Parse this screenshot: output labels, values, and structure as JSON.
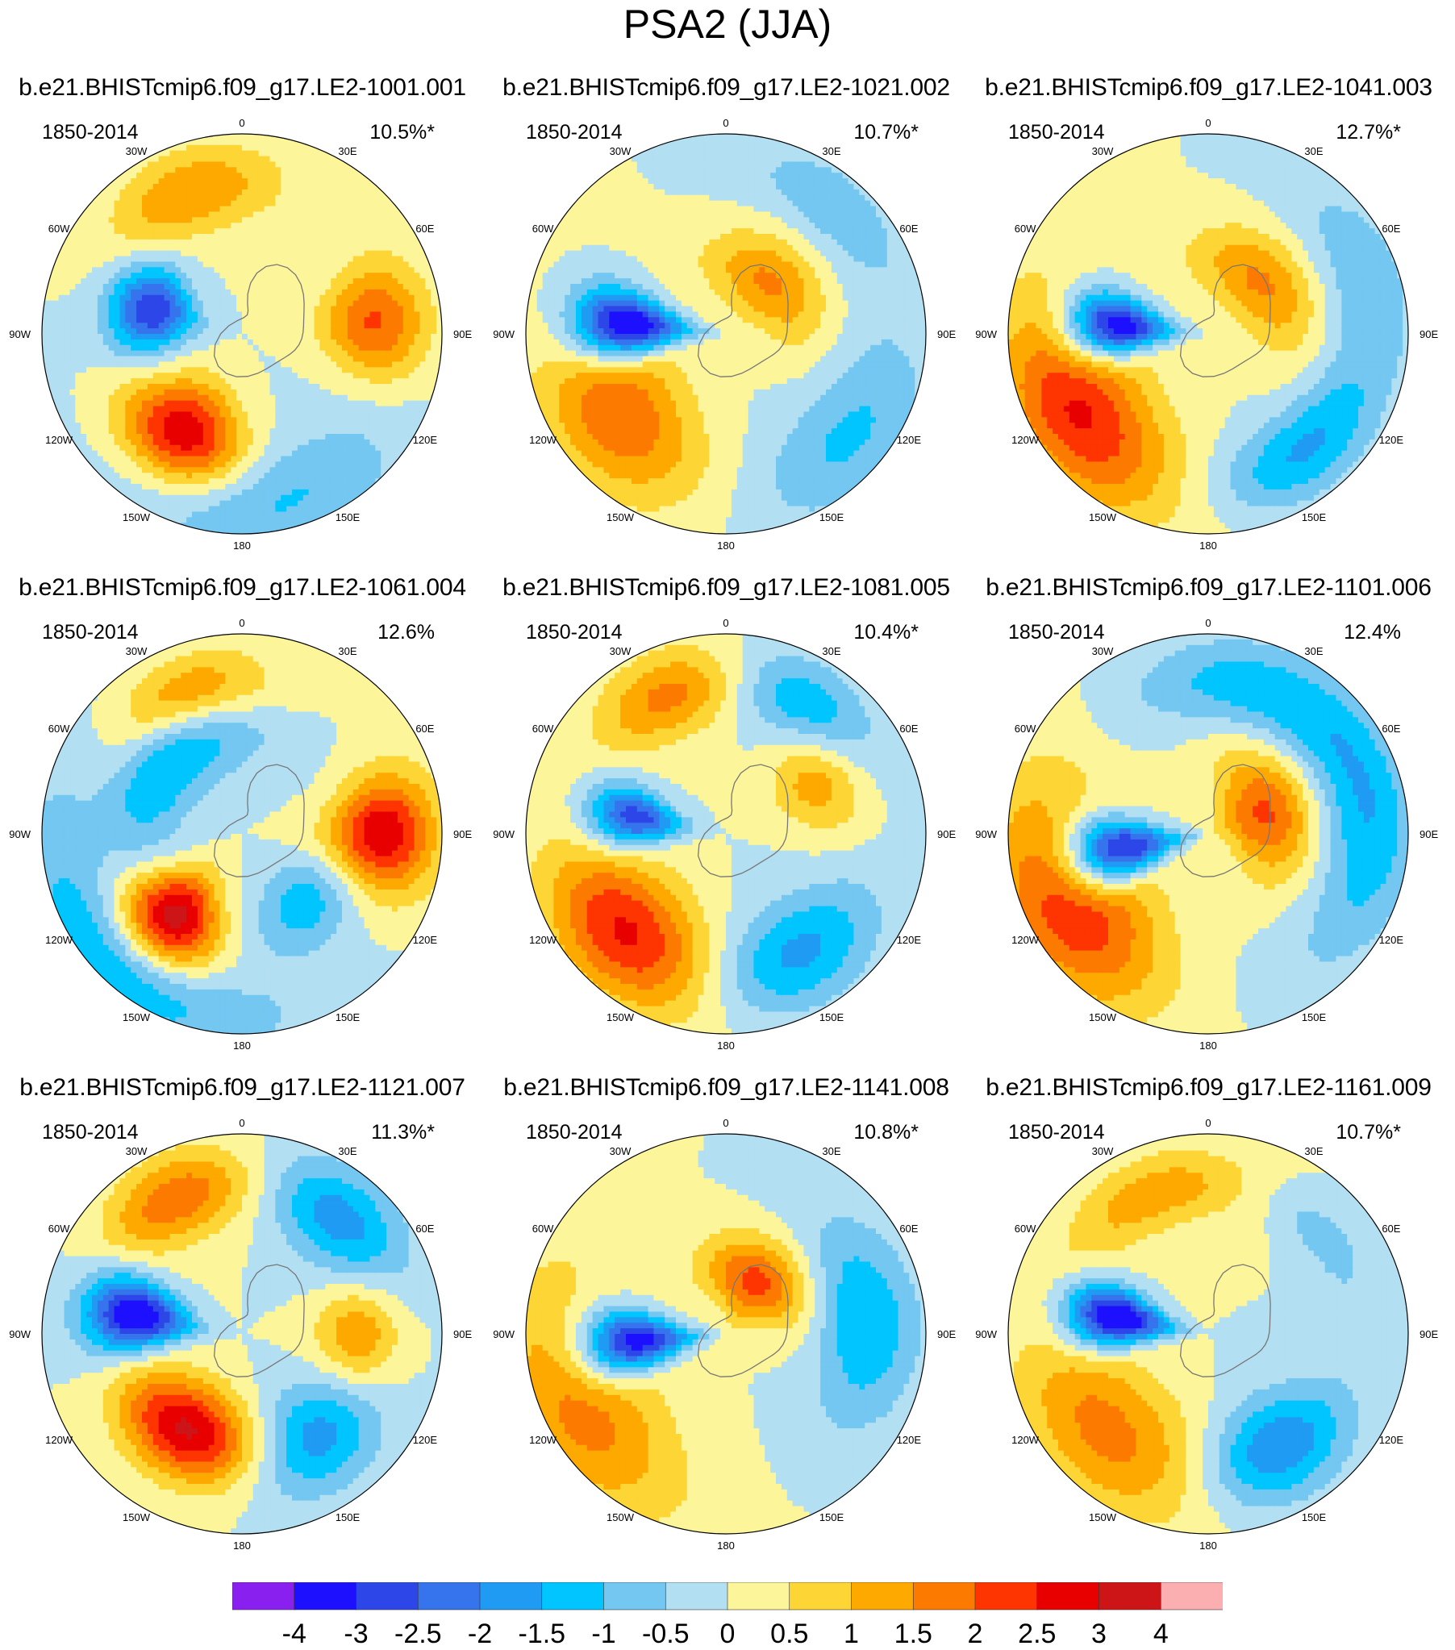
{
  "title": "PSA2 (JJA)",
  "panels": [
    {
      "name": "b.e21.BHISTcmip6.f09_g17.LE2-1001.001",
      "period": "1850-2014",
      "variance": "10.5%*",
      "blobs": [
        {
          "lon": -150,
          "lat": -55,
          "amp": 3.2,
          "w": 22,
          "h": 11
        },
        {
          "lon": -75,
          "lat": -62,
          "amp": -3.0,
          "w": 18,
          "h": 9
        },
        {
          "lon": 85,
          "lat": -50,
          "amp": 2.1,
          "w": 17,
          "h": 11
        },
        {
          "lon": -20,
          "lat": -45,
          "amp": 1.5,
          "w": 24,
          "h": 9
        },
        {
          "lon": 175,
          "lat": -40,
          "amp": -1.2,
          "w": 36,
          "h": 12
        }
      ]
    },
    {
      "name": "b.e21.BHISTcmip6.f09_g17.LE2-1021.002",
      "period": "1850-2014",
      "variance": "10.7%*",
      "blobs": [
        {
          "lon": -85,
          "lat": -60,
          "amp": -4.2,
          "w": 13,
          "h": 12
        },
        {
          "lon": -125,
          "lat": -50,
          "amp": 2.0,
          "w": 30,
          "h": 14
        },
        {
          "lon": 40,
          "lat": -70,
          "amp": 1.6,
          "w": 40,
          "h": 9
        },
        {
          "lon": 130,
          "lat": -42,
          "amp": -1.1,
          "w": 28,
          "h": 12
        },
        {
          "lon": 40,
          "lat": -40,
          "amp": -0.9,
          "w": 22,
          "h": 8
        }
      ]
    },
    {
      "name": "b.e21.BHISTcmip6.f09_g17.LE2-1041.003",
      "period": "1850-2014",
      "variance": "12.7%*",
      "blobs": [
        {
          "lon": -85,
          "lat": -62,
          "amp": -4.0,
          "w": 13,
          "h": 11
        },
        {
          "lon": -120,
          "lat": -45,
          "amp": 2.6,
          "w": 32,
          "h": 14
        },
        {
          "lon": 45,
          "lat": -68,
          "amp": 1.6,
          "w": 40,
          "h": 9
        },
        {
          "lon": 140,
          "lat": -45,
          "amp": -1.6,
          "w": 26,
          "h": 9
        },
        {
          "lon": 70,
          "lat": -40,
          "amp": -0.9,
          "w": 25,
          "h": 9
        }
      ]
    },
    {
      "name": "b.e21.BHISTcmip6.f09_g17.LE2-1061.004",
      "period": "1850-2014",
      "variance": "12.6%",
      "blobs": [
        {
          "lon": -140,
          "lat": -58,
          "amp": 3.4,
          "w": 18,
          "h": 10
        },
        {
          "lon": 90,
          "lat": -48,
          "amp": 3.0,
          "w": 16,
          "h": 11
        },
        {
          "lon": -45,
          "lat": -60,
          "amp": -1.6,
          "w": 40,
          "h": 9
        },
        {
          "lon": -135,
          "lat": -35,
          "amp": -1.4,
          "w": 40,
          "h": 10
        },
        {
          "lon": 140,
          "lat": -62,
          "amp": -1.3,
          "w": 22,
          "h": 9
        },
        {
          "lon": -20,
          "lat": -45,
          "amp": 1.5,
          "w": 22,
          "h": 8
        }
      ]
    },
    {
      "name": "b.e21.BHISTcmip6.f09_g17.LE2-1081.005",
      "period": "1850-2014",
      "variance": "10.4%*",
      "blobs": [
        {
          "lon": -80,
          "lat": -62,
          "amp": -3.0,
          "w": 12,
          "h": 10
        },
        {
          "lon": -135,
          "lat": -48,
          "amp": 2.6,
          "w": 28,
          "h": 13
        },
        {
          "lon": 60,
          "lat": -58,
          "amp": 1.4,
          "w": 20,
          "h": 10
        },
        {
          "lon": 150,
          "lat": -48,
          "amp": -1.7,
          "w": 26,
          "h": 11
        },
        {
          "lon": 30,
          "lat": -45,
          "amp": -1.6,
          "w": 24,
          "h": 9
        },
        {
          "lon": -20,
          "lat": -45,
          "amp": 1.8,
          "w": 22,
          "h": 9
        }
      ]
    },
    {
      "name": "b.e21.BHISTcmip6.f09_g17.LE2-1101.006",
      "period": "1850-2014",
      "variance": "12.4%",
      "blobs": [
        {
          "lon": -100,
          "lat": -62,
          "amp": -4.1,
          "w": 14,
          "h": 12
        },
        {
          "lon": -115,
          "lat": -45,
          "amp": 2.7,
          "w": 30,
          "h": 15
        },
        {
          "lon": 70,
          "lat": -72,
          "amp": 2.1,
          "w": 40,
          "h": 10
        },
        {
          "lon": 80,
          "lat": -42,
          "amp": -1.5,
          "w": 40,
          "h": 10
        },
        {
          "lon": 10,
          "lat": -45,
          "amp": -1.0,
          "w": 30,
          "h": 9
        }
      ]
    },
    {
      "name": "b.e21.BHISTcmip6.f09_g17.LE2-1121.007",
      "period": "1850-2014",
      "variance": "11.3%*",
      "blobs": [
        {
          "lon": -80,
          "lat": -58,
          "amp": -3.8,
          "w": 13,
          "h": 11
        },
        {
          "lon": -150,
          "lat": -57,
          "amp": 3.1,
          "w": 26,
          "h": 10
        },
        {
          "lon": -25,
          "lat": -45,
          "amp": 1.9,
          "w": 22,
          "h": 9
        },
        {
          "lon": 40,
          "lat": -45,
          "amp": -1.8,
          "w": 22,
          "h": 10
        },
        {
          "lon": 145,
          "lat": -52,
          "amp": -1.8,
          "w": 22,
          "h": 11
        },
        {
          "lon": 90,
          "lat": -55,
          "amp": 1.5,
          "w": 18,
          "h": 9
        }
      ]
    },
    {
      "name": "b.e21.BHISTcmip6.f09_g17.LE2-1141.008",
      "period": "1850-2014",
      "variance": "10.8%*",
      "blobs": [
        {
          "lon": -95,
          "lat": -62,
          "amp": -3.8,
          "w": 13,
          "h": 12
        },
        {
          "lon": -115,
          "lat": -42,
          "amp": 1.8,
          "w": 32,
          "h": 15
        },
        {
          "lon": 30,
          "lat": -72,
          "amp": 2.2,
          "w": 35,
          "h": 9
        },
        {
          "lon": 85,
          "lat": -48,
          "amp": -1.5,
          "w": 30,
          "h": 11
        }
      ]
    },
    {
      "name": "b.e21.BHISTcmip6.f09_g17.LE2-1161.009",
      "period": "1850-2014",
      "variance": "10.7%*",
      "blobs": [
        {
          "lon": -80,
          "lat": -62,
          "amp": -4.1,
          "w": 12,
          "h": 11
        },
        {
          "lon": -135,
          "lat": -48,
          "amp": 1.7,
          "w": 36,
          "h": 14
        },
        {
          "lon": 150,
          "lat": -50,
          "amp": -2.1,
          "w": 24,
          "h": 11
        },
        {
          "lon": -20,
          "lat": -45,
          "amp": 1.3,
          "w": 28,
          "h": 8
        },
        {
          "lon": 50,
          "lat": -45,
          "amp": -0.8,
          "w": 20,
          "h": 6
        }
      ]
    }
  ],
  "map_labels": [
    "0",
    "30E",
    "60E",
    "90E",
    "120E",
    "150E",
    "180",
    "150W",
    "120W",
    "90W",
    "60W",
    "30W"
  ],
  "colorbar": {
    "levels": [
      "-4",
      "-3",
      "-2.5",
      "-2",
      "-1.5",
      "-1",
      "-0.5",
      "0",
      "0.5",
      "1",
      "1.5",
      "2",
      "2.5",
      "3",
      "4"
    ],
    "colors": [
      "#8a20f0",
      "#1c10ff",
      "#2c46e8",
      "#3574ec",
      "#1f9bf4",
      "#00c5ff",
      "#73c7f1",
      "#b3dff2",
      "#fdf59a",
      "#fdd534",
      "#fda900",
      "#fd7a00",
      "#fe3500",
      "#e80000",
      "#cd1518",
      "#fcafb0"
    ]
  }
}
